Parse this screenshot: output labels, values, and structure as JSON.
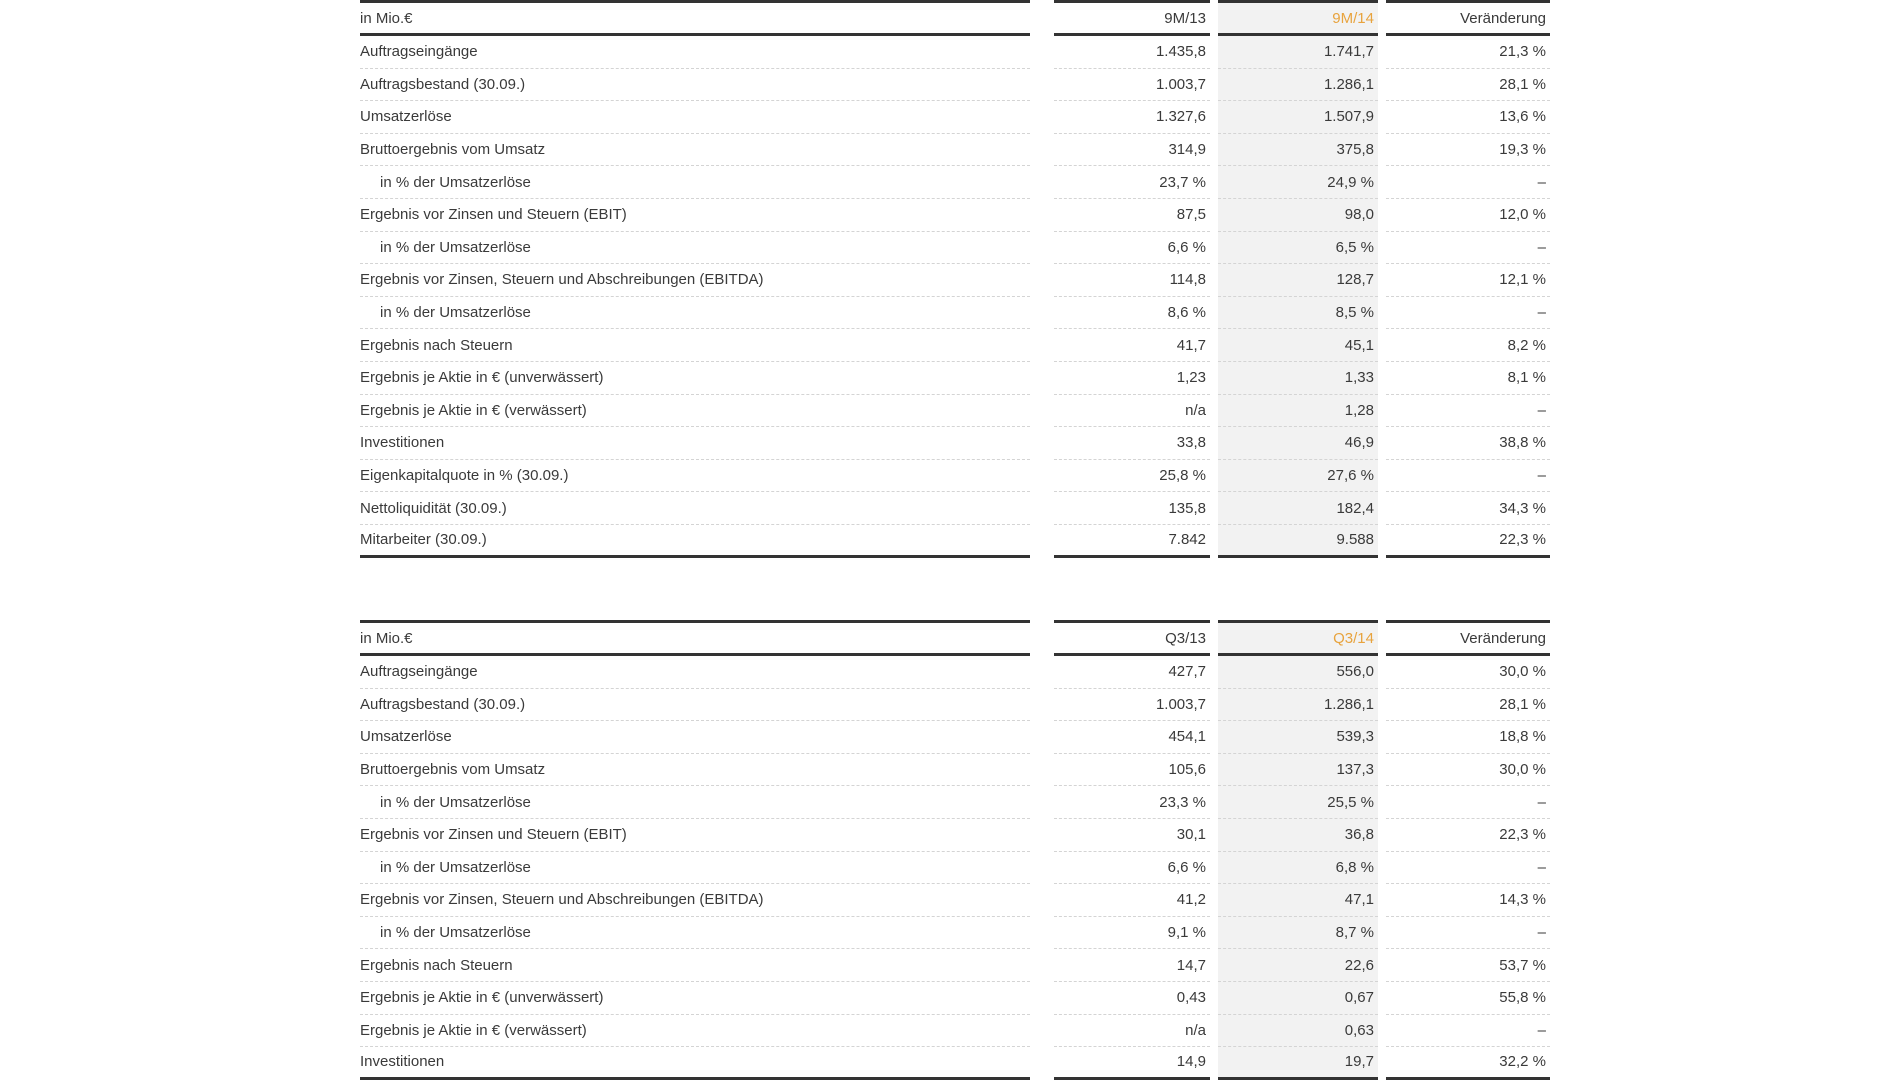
{
  "tables": [
    {
      "header": {
        "label": "in Mio.€",
        "prev": "9M/13",
        "curr": "9M/14",
        "change": "Veränderung"
      },
      "rows": [
        {
          "label": "Auftragseingänge",
          "prev": "1.435,8",
          "curr": "1.741,7",
          "change": "21,3 %"
        },
        {
          "label": "Auftragsbestand (30.09.)",
          "prev": "1.003,7",
          "curr": "1.286,1",
          "change": "28,1 %"
        },
        {
          "label": "Umsatzerlöse",
          "prev": "1.327,6",
          "curr": "1.507,9",
          "change": "13,6 %"
        },
        {
          "label": "Bruttoergebnis vom Umsatz",
          "prev": "314,9",
          "curr": "375,8",
          "change": "19,3 %"
        },
        {
          "label": "in % der Umsatzerlöse",
          "indent": true,
          "prev": "23,7 %",
          "curr": "24,9 %",
          "change": "–"
        },
        {
          "label": "Ergebnis vor Zinsen und Steuern (EBIT)",
          "prev": "87,5",
          "curr": "98,0",
          "change": "12,0 %"
        },
        {
          "label": "in % der Umsatzerlöse",
          "indent": true,
          "prev": "6,6 %",
          "curr": "6,5 %",
          "change": "–"
        },
        {
          "label": "Ergebnis vor Zinsen, Steuern und Abschreibungen (EBITDA)",
          "prev": "114,8",
          "curr": "128,7",
          "change": "12,1 %"
        },
        {
          "label": "in % der Umsatzerlöse",
          "indent": true,
          "prev": "8,6 %",
          "curr": "8,5 %",
          "change": "–"
        },
        {
          "label": "Ergebnis nach Steuern",
          "prev": "41,7",
          "curr": "45,1",
          "change": "8,2 %"
        },
        {
          "label": "Ergebnis je Aktie in € (unverwässert)",
          "prev": "1,23",
          "curr": "1,33",
          "change": "8,1 %"
        },
        {
          "label": "Ergebnis je Aktie in € (verwässert)",
          "prev": "n/a",
          "curr": "1,28",
          "change": "–"
        },
        {
          "label": "Investitionen",
          "prev": "33,8",
          "curr": "46,9",
          "change": "38,8 %"
        },
        {
          "label": "Eigenkapitalquote in % (30.09.)",
          "prev": "25,8 %",
          "curr": "27,6 %",
          "change": "–"
        },
        {
          "label": "Nettoliquidität (30.09.)",
          "prev": "135,8",
          "curr": "182,4",
          "change": "34,3 %"
        },
        {
          "label": "Mitarbeiter (30.09.)",
          "prev": "7.842",
          "curr": "9.588",
          "change": "22,3 %"
        }
      ]
    },
    {
      "header": {
        "label": "in Mio.€",
        "prev": "Q3/13",
        "curr": "Q3/14",
        "change": "Veränderung"
      },
      "rows": [
        {
          "label": "Auftragseingänge",
          "prev": "427,7",
          "curr": "556,0",
          "change": "30,0 %"
        },
        {
          "label": "Auftragsbestand (30.09.)",
          "prev": "1.003,7",
          "curr": "1.286,1",
          "change": "28,1 %"
        },
        {
          "label": "Umsatzerlöse",
          "prev": "454,1",
          "curr": "539,3",
          "change": "18,8 %"
        },
        {
          "label": "Bruttoergebnis vom Umsatz",
          "prev": "105,6",
          "curr": "137,3",
          "change": "30,0 %"
        },
        {
          "label": "in % der Umsatzerlöse",
          "indent": true,
          "prev": "23,3 %",
          "curr": "25,5 %",
          "change": "–"
        },
        {
          "label": "Ergebnis vor Zinsen und Steuern (EBIT)",
          "prev": "30,1",
          "curr": "36,8",
          "change": "22,3 %"
        },
        {
          "label": "in % der Umsatzerlöse",
          "indent": true,
          "prev": "6,6 %",
          "curr": "6,8 %",
          "change": "–"
        },
        {
          "label": "Ergebnis vor Zinsen, Steuern und Abschreibungen (EBITDA)",
          "prev": "41,2",
          "curr": "47,1",
          "change": "14,3 %"
        },
        {
          "label": "in % der Umsatzerlöse",
          "indent": true,
          "prev": "9,1 %",
          "curr": "8,7 %",
          "change": "–"
        },
        {
          "label": "Ergebnis nach Steuern",
          "prev": "14,7",
          "curr": "22,6",
          "change": "53,7 %"
        },
        {
          "label": "Ergebnis je Aktie in € (unverwässert)",
          "prev": "0,43",
          "curr": "0,67",
          "change": "55,8 %"
        },
        {
          "label": "Ergebnis je Aktie in € (verwässert)",
          "prev": "n/a",
          "curr": "0,63",
          "change": "–"
        },
        {
          "label": "Investitionen",
          "prev": "14,9",
          "curr": "19,7",
          "change": "32,2 %"
        }
      ]
    }
  ],
  "colors": {
    "highlight_header": "#e8a33d",
    "highlight_bg": "#f2f2f2",
    "rule": "#333333",
    "text": "#3a3a3a"
  }
}
